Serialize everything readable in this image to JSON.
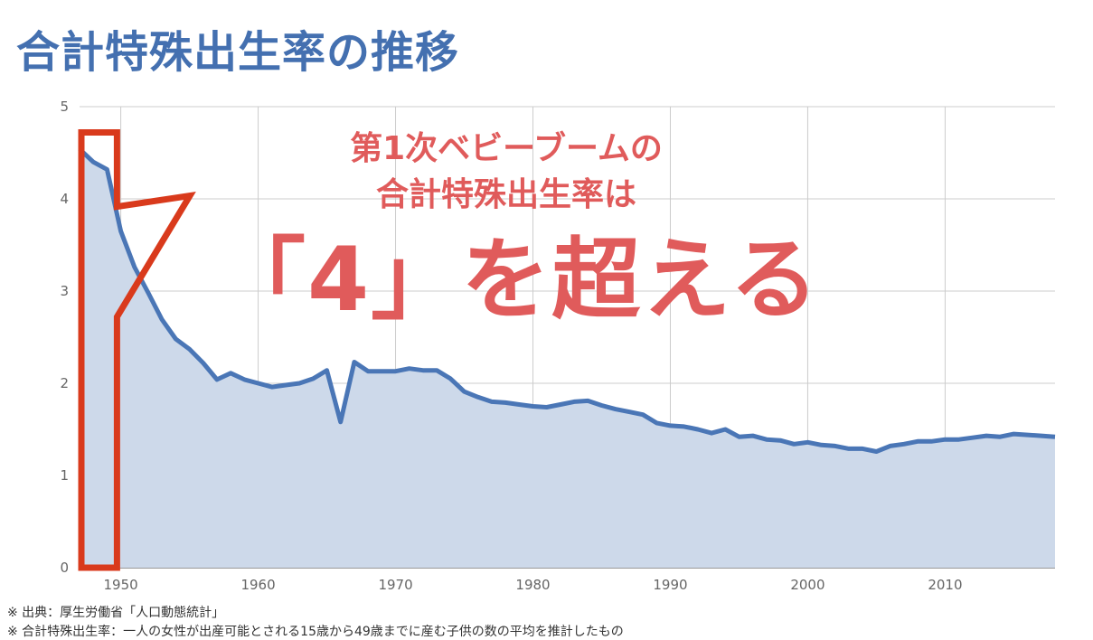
{
  "title": "合計特殊出生率の推移",
  "annotation": {
    "line1": "第1次ベビーブームの",
    "line2": "合計特殊出生率は",
    "big": "「4」を超える"
  },
  "notes": {
    "source": "※ 出典：厚生労働省「人口動態統計」",
    "definition": "※ 合計特殊出生率：一人の女性が出産可能とされる15歳から49歳までに産む子供の数の平均を推計したもの"
  },
  "colors": {
    "title": "#4470b0",
    "line": "#4a76b6",
    "area": "#cdd9ea",
    "annotation": "#e05b5b",
    "highlight": "#d93a1c",
    "grid": "#cccccc"
  },
  "chart_data": {
    "type": "area",
    "title": "",
    "xlabel": "",
    "ylabel": "",
    "xlim": [
      1947,
      2018
    ],
    "ylim": [
      0,
      5
    ],
    "yticks": [
      0,
      1,
      2,
      3,
      4,
      5
    ],
    "xticks": [
      1950,
      1960,
      1970,
      1980,
      1990,
      2000,
      2010
    ],
    "grid": true,
    "highlight_range": [
      1947,
      1949
    ],
    "series": [
      {
        "x": [
          1947,
          1948,
          1949,
          1950,
          1951,
          1952,
          1953,
          1954,
          1955,
          1956,
          1957,
          1958,
          1959,
          1960,
          1961,
          1962,
          1963,
          1964,
          1965,
          1966,
          1967,
          1968,
          1969,
          1970,
          1971,
          1972,
          1973,
          1974,
          1975,
          1976,
          1977,
          1978,
          1979,
          1980,
          1981,
          1982,
          1983,
          1984,
          1985,
          1986,
          1987,
          1988,
          1989,
          1990,
          1991,
          1992,
          1993,
          1994,
          1995,
          1996,
          1997,
          1998,
          1999,
          2000,
          2001,
          2002,
          2003,
          2004,
          2005,
          2006,
          2007,
          2008,
          2009,
          2010,
          2011,
          2012,
          2013,
          2014,
          2015,
          2016,
          2017,
          2018
        ],
        "values": [
          4.54,
          4.4,
          4.32,
          3.65,
          3.26,
          2.98,
          2.69,
          2.48,
          2.37,
          2.22,
          2.04,
          2.11,
          2.04,
          2.0,
          1.96,
          1.98,
          2.0,
          2.05,
          2.14,
          1.58,
          2.23,
          2.13,
          2.13,
          2.13,
          2.16,
          2.14,
          2.14,
          2.05,
          1.91,
          1.85,
          1.8,
          1.79,
          1.77,
          1.75,
          1.74,
          1.77,
          1.8,
          1.81,
          1.76,
          1.72,
          1.69,
          1.66,
          1.57,
          1.54,
          1.53,
          1.5,
          1.46,
          1.5,
          1.42,
          1.43,
          1.39,
          1.38,
          1.34,
          1.36,
          1.33,
          1.32,
          1.29,
          1.29,
          1.26,
          1.32,
          1.34,
          1.37,
          1.37,
          1.39,
          1.39,
          1.41,
          1.43,
          1.42,
          1.45,
          1.44,
          1.43,
          1.42
        ]
      }
    ]
  }
}
